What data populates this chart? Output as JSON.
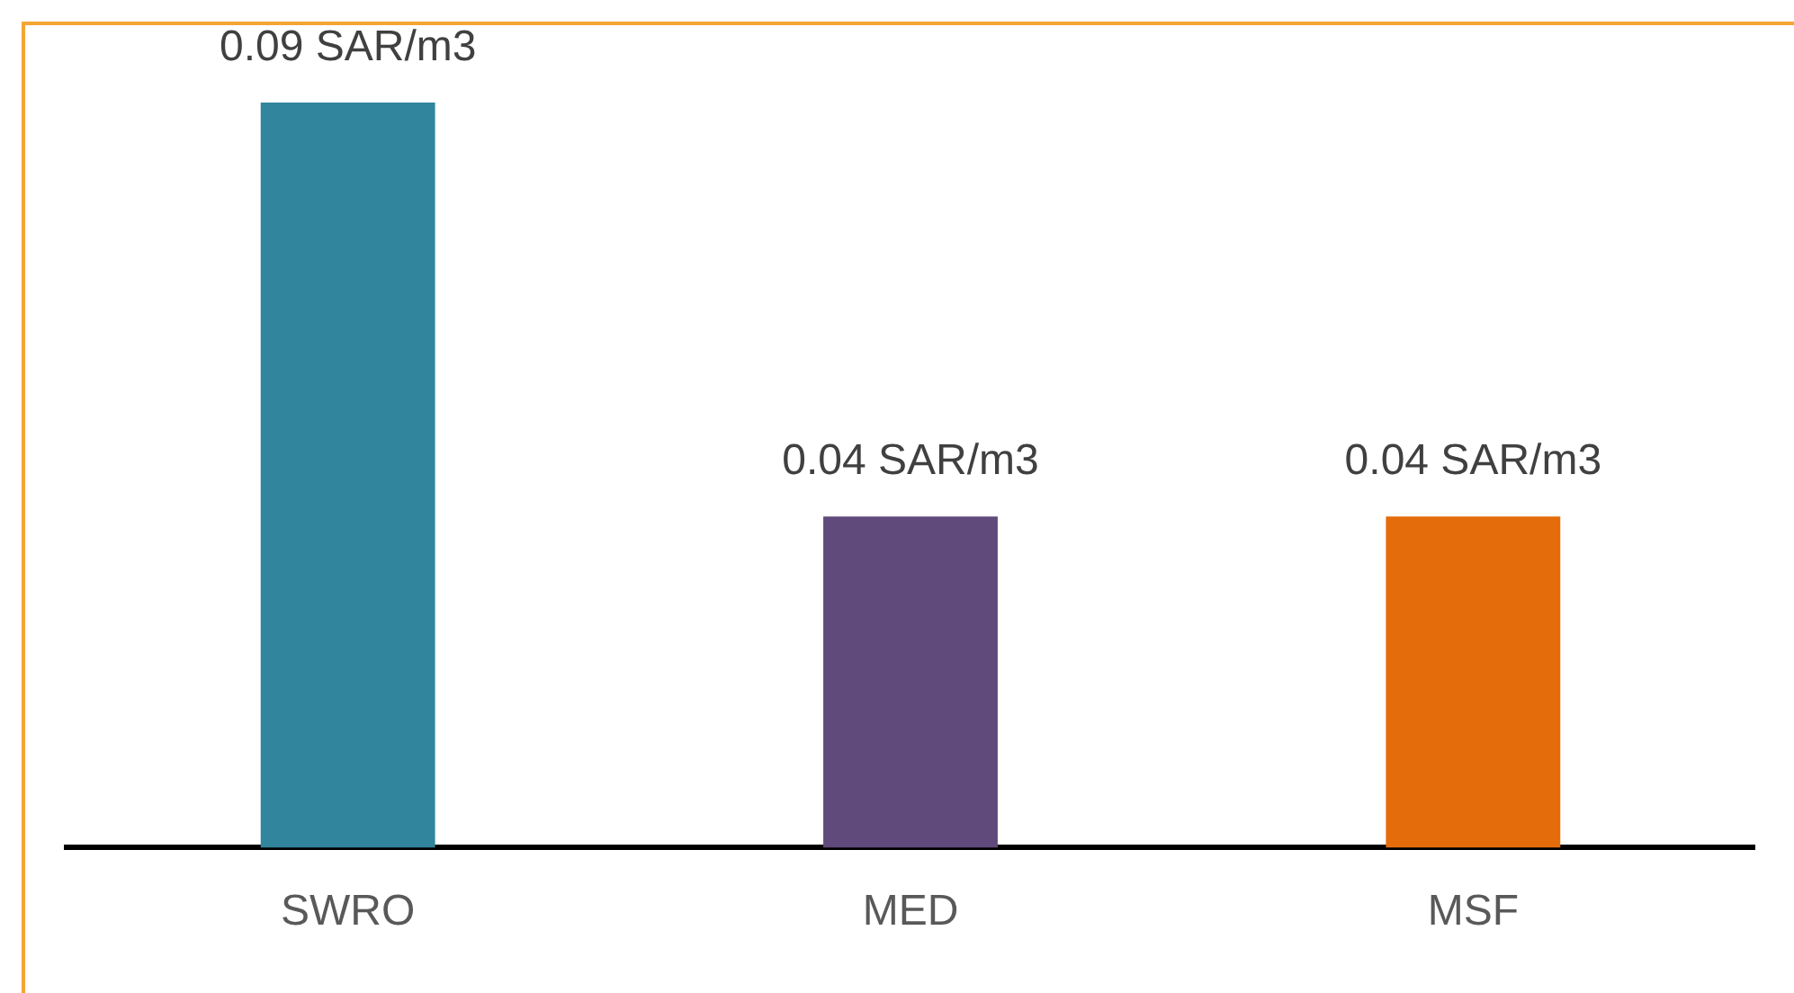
{
  "chart_data": {
    "type": "bar",
    "categories": [
      "SWRO",
      "MED",
      "MSF"
    ],
    "values": [
      0.09,
      0.04,
      0.04
    ],
    "colors": [
      "#31859c",
      "#604a7b",
      "#e46c0a"
    ],
    "value_labels": [
      "0.09 SAR/m3",
      "0.04 SAR/m3",
      "0.04 SAR/m3"
    ],
    "tick_labels": "x",
    "grid": false,
    "legend": false
  }
}
